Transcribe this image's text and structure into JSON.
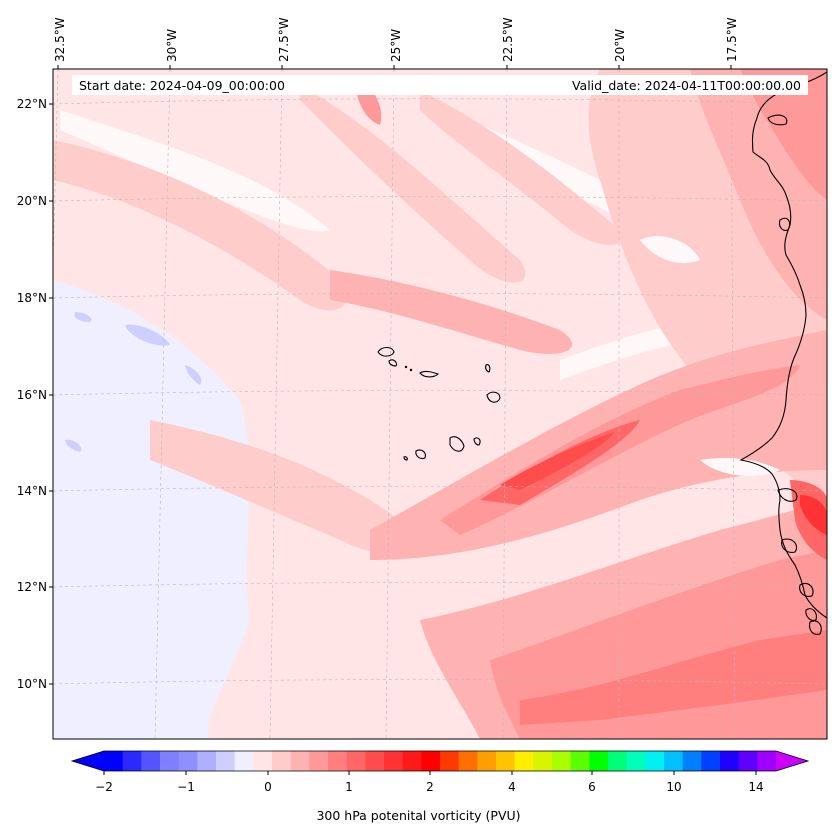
{
  "header": {
    "start_date": "Start date: 2024-04-09_00:00:00",
    "valid_date": "Valid_date: 2024-04-11T00:00:00.00"
  },
  "map": {
    "lon_labels": [
      "32.5°W",
      "30°W",
      "27.5°W",
      "25°W",
      "22.5°W",
      "20°W",
      "17.5°W"
    ],
    "lat_labels": [
      "22°N",
      "20°N",
      "18°N",
      "16°N",
      "14°N",
      "12°N",
      "10°N"
    ]
  },
  "colorbar": {
    "ticks": [
      "−2",
      "−1",
      "0",
      "1",
      "2",
      "4",
      "6",
      "10",
      "14"
    ],
    "label": "300 hPa potenital vorticity (PVU)",
    "colors": [
      "#0000ff",
      "#2a2aff",
      "#5555ff",
      "#7f7fff",
      "#8f8fff",
      "#afafff",
      "#cfcfff",
      "#efefff",
      "#ffe5e5",
      "#ffcccc",
      "#ffb2b2",
      "#ff9999",
      "#ff7f7f",
      "#ff6666",
      "#ff4c4c",
      "#ff3333",
      "#ff1a1a",
      "#ff0000",
      "#ff3a00",
      "#ff6e00",
      "#ff9e00",
      "#ffc400",
      "#ffee00",
      "#d8f500",
      "#a8ff00",
      "#5cff00",
      "#00ff00",
      "#00ff77",
      "#00ffbb",
      "#00f0f0",
      "#00c0ff",
      "#0080ff",
      "#0040ff",
      "#2000ff",
      "#6000ff",
      "#a000ff"
    ],
    "extend_left": "#0000ff",
    "extend_right": "#cc00ff"
  },
  "colors": {
    "light_pink": "#ffe5e5",
    "pink": "#ffcccc",
    "medium_pink": "#ffb2b2",
    "salmon": "#ff9999",
    "red": "#ff6666",
    "deep_red": "#ff4c4c",
    "pale_blue": "#efefff",
    "light_blue": "#cfcfff"
  }
}
